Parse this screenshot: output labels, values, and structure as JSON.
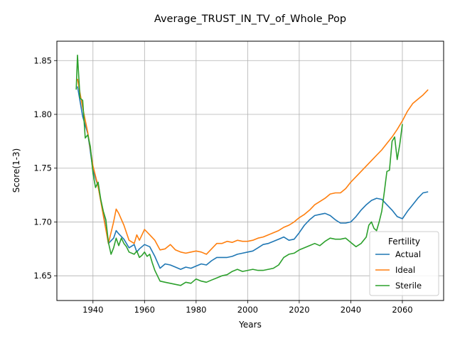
{
  "chart_data": {
    "type": "line",
    "title": "Average_TRUST_IN_TV_of_Whole_Pop",
    "xlabel": "Years",
    "ylabel": "Score(1-3)",
    "xlim": [
      1926,
      2076
    ],
    "ylim": [
      1.627,
      1.868
    ],
    "x_ticks": [
      1940,
      1960,
      1980,
      2000,
      2020,
      2040,
      2060
    ],
    "y_ticks": [
      1.65,
      1.7,
      1.75,
      1.8,
      1.85
    ],
    "x_tick_labels": [
      "1940",
      "1960",
      "1980",
      "2000",
      "2020",
      "2040",
      "2060"
    ],
    "y_tick_labels": [
      "1.65",
      "1.70",
      "1.75",
      "1.80",
      "1.85"
    ],
    "grid": true,
    "legend": {
      "title": "Fertility",
      "placement": "lower-right"
    },
    "series": [
      {
        "name": "Actual",
        "color": "#1f77b4",
        "x": [
          1934,
          1936,
          1938,
          1940,
          1942,
          1944,
          1946,
          1948,
          1949,
          1950,
          1952,
          1954,
          1956,
          1957,
          1958,
          1960,
          1962,
          1964,
          1966,
          1968,
          1970,
          1972,
          1974,
          1976,
          1978,
          1980,
          1982,
          1984,
          1986,
          1988,
          1990,
          1992,
          1994,
          1996,
          1998,
          2000,
          2002,
          2004,
          2006,
          2008,
          2010,
          2012,
          2014,
          2016,
          2018,
          2020,
          2022,
          2024,
          2026,
          2028,
          2030,
          2032,
          2034,
          2036,
          2038,
          2040,
          2042,
          2044,
          2046,
          2048,
          2050,
          2052,
          2054,
          2056,
          2058,
          2060,
          2062,
          2064,
          2066,
          2068,
          2070
        ],
        "y": [
          1.826,
          1.798,
          1.782,
          1.748,
          1.733,
          1.708,
          1.68,
          1.685,
          1.692,
          1.689,
          1.684,
          1.676,
          1.679,
          1.672,
          1.675,
          1.679,
          1.677,
          1.668,
          1.657,
          1.661,
          1.66,
          1.658,
          1.656,
          1.658,
          1.657,
          1.659,
          1.661,
          1.66,
          1.664,
          1.667,
          1.667,
          1.667,
          1.668,
          1.67,
          1.671,
          1.672,
          1.673,
          1.676,
          1.679,
          1.68,
          1.682,
          1.684,
          1.686,
          1.683,
          1.684,
          1.69,
          1.697,
          1.702,
          1.706,
          1.707,
          1.708,
          1.706,
          1.702,
          1.699,
          1.699,
          1.7,
          1.705,
          1.711,
          1.716,
          1.72,
          1.722,
          1.721,
          1.716,
          1.711,
          1.705,
          1.703,
          1.71,
          1.716,
          1.722,
          1.727,
          1.728
        ]
      },
      {
        "name": "Ideal",
        "color": "#ff7f0e",
        "x": [
          1934,
          1936,
          1938,
          1940,
          1942,
          1944,
          1946,
          1948,
          1949,
          1950,
          1952,
          1954,
          1956,
          1957,
          1958,
          1960,
          1962,
          1964,
          1966,
          1968,
          1970,
          1972,
          1974,
          1976,
          1978,
          1980,
          1982,
          1984,
          1986,
          1988,
          1990,
          1992,
          1994,
          1996,
          1998,
          2000,
          2002,
          2004,
          2006,
          2008,
          2010,
          2012,
          2014,
          2016,
          2018,
          2020,
          2022,
          2024,
          2026,
          2028,
          2030,
          2032,
          2034,
          2036,
          2038,
          2040,
          2042,
          2044,
          2046,
          2048,
          2050,
          2052,
          2054,
          2056,
          2058,
          2060,
          2062,
          2064,
          2066,
          2068,
          2070
        ],
        "y": [
          1.833,
          1.806,
          1.783,
          1.752,
          1.733,
          1.706,
          1.68,
          1.7,
          1.712,
          1.708,
          1.697,
          1.683,
          1.68,
          1.688,
          1.683,
          1.693,
          1.688,
          1.683,
          1.674,
          1.675,
          1.679,
          1.674,
          1.672,
          1.671,
          1.672,
          1.673,
          1.672,
          1.67,
          1.675,
          1.68,
          1.68,
          1.682,
          1.681,
          1.683,
          1.682,
          1.682,
          1.683,
          1.685,
          1.686,
          1.688,
          1.69,
          1.692,
          1.695,
          1.697,
          1.7,
          1.704,
          1.707,
          1.711,
          1.716,
          1.719,
          1.722,
          1.726,
          1.727,
          1.727,
          1.731,
          1.737,
          1.742,
          1.747,
          1.752,
          1.757,
          1.762,
          1.767,
          1.773,
          1.779,
          1.786,
          1.794,
          1.803,
          1.81,
          1.814,
          1.818,
          1.823
        ]
      },
      {
        "name": "Sterile",
        "color": "#2ca02c",
        "x": [
          1933.5,
          1934,
          1935,
          1936,
          1937,
          1938,
          1939,
          1940,
          1941,
          1942,
          1943,
          1944,
          1945,
          1946,
          1947,
          1948,
          1949,
          1950,
          1951,
          1952,
          1953,
          1954,
          1956,
          1957,
          1958,
          1959,
          1960,
          1961,
          1962,
          1963,
          1964,
          1966,
          1968,
          1970,
          1972,
          1974,
          1976,
          1978,
          1980,
          1982,
          1984,
          1986,
          1988,
          1990,
          1992,
          1994,
          1996,
          1998,
          2000,
          2002,
          2004,
          2006,
          2008,
          2010,
          2012,
          2014,
          2016,
          2018,
          2020,
          2022,
          2024,
          2026,
          2028,
          2030,
          2032,
          2034,
          2036,
          2038,
          2040,
          2042,
          2044,
          2046,
          2047,
          2048,
          2049,
          2050,
          2051,
          2052,
          2053,
          2054,
          2055,
          2056,
          2057,
          2058,
          2059,
          2060
        ],
        "y": [
          1.823,
          1.855,
          1.815,
          1.813,
          1.778,
          1.781,
          1.77,
          1.745,
          1.732,
          1.737,
          1.721,
          1.71,
          1.702,
          1.681,
          1.67,
          1.676,
          1.685,
          1.678,
          1.685,
          1.68,
          1.677,
          1.672,
          1.67,
          1.673,
          1.667,
          1.669,
          1.672,
          1.668,
          1.67,
          1.662,
          1.655,
          1.645,
          1.644,
          1.643,
          1.642,
          1.641,
          1.644,
          1.643,
          1.647,
          1.645,
          1.644,
          1.646,
          1.648,
          1.65,
          1.651,
          1.654,
          1.656,
          1.654,
          1.655,
          1.656,
          1.655,
          1.655,
          1.656,
          1.657,
          1.66,
          1.667,
          1.67,
          1.671,
          1.674,
          1.676,
          1.678,
          1.68,
          1.678,
          1.682,
          1.685,
          1.684,
          1.684,
          1.685,
          1.681,
          1.677,
          1.68,
          1.686,
          1.697,
          1.7,
          1.694,
          1.692,
          1.7,
          1.71,
          1.728,
          1.747,
          1.748,
          1.775,
          1.779,
          1.758,
          1.772,
          1.791
        ]
      }
    ]
  }
}
